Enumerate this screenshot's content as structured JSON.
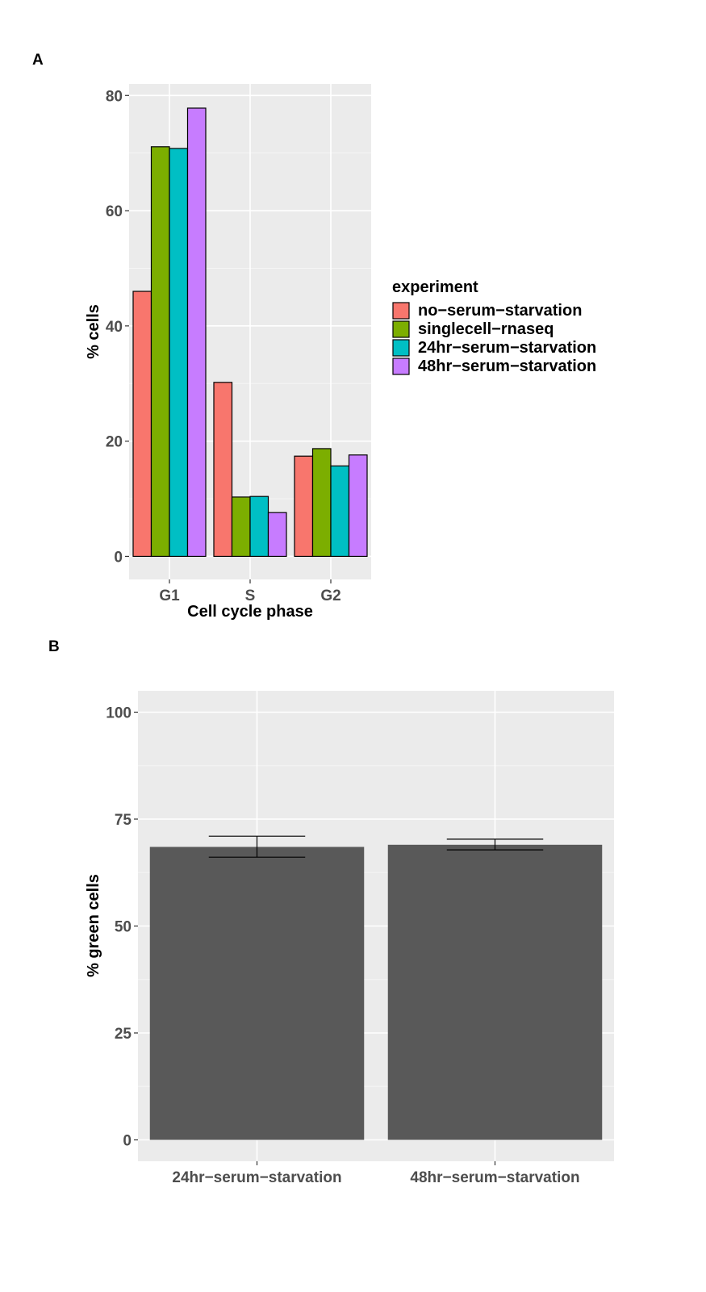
{
  "panels": {
    "a": {
      "letter": "A",
      "chart_data": {
        "type": "bar",
        "categories": [
          "G1",
          "S",
          "G2"
        ],
        "series": [
          {
            "name": "no−serum−starvation",
            "color": "#F8766D",
            "values": [
              46,
              30.2,
              17.4
            ]
          },
          {
            "name": "singlecell−rnaseq",
            "color": "#7CAE00",
            "values": [
              71.1,
              10.3,
              18.7
            ]
          },
          {
            "name": "24hr−serum−starvation",
            "color": "#00BFC4",
            "values": [
              70.8,
              10.4,
              15.7
            ]
          },
          {
            "name": "48hr−serum−starvation",
            "color": "#C77CFF",
            "values": [
              77.8,
              7.6,
              17.6
            ]
          }
        ],
        "xlabel": "Cell cycle phase",
        "ylabel": "% cells",
        "ylim": [
          -4,
          82
        ],
        "yticks": [
          "0",
          "20",
          "40",
          "60",
          "80"
        ],
        "legend_title": "experiment",
        "legend_position": "right",
        "grid": true
      }
    },
    "b": {
      "letter": "B",
      "chart_data": {
        "type": "bar",
        "categories": [
          "24hr−serum−starvation",
          "48hr−serum−starvation"
        ],
        "values": [
          68.5,
          69.0
        ],
        "error_low": [
          66.1,
          67.8
        ],
        "error_high": [
          71.0,
          70.3
        ],
        "bar_color": "#595959",
        "xlabel": "",
        "ylabel": "% green cells",
        "ylim": [
          -5,
          105
        ],
        "yticks": [
          "0",
          "25",
          "50",
          "75",
          "100"
        ],
        "grid": true
      }
    }
  }
}
